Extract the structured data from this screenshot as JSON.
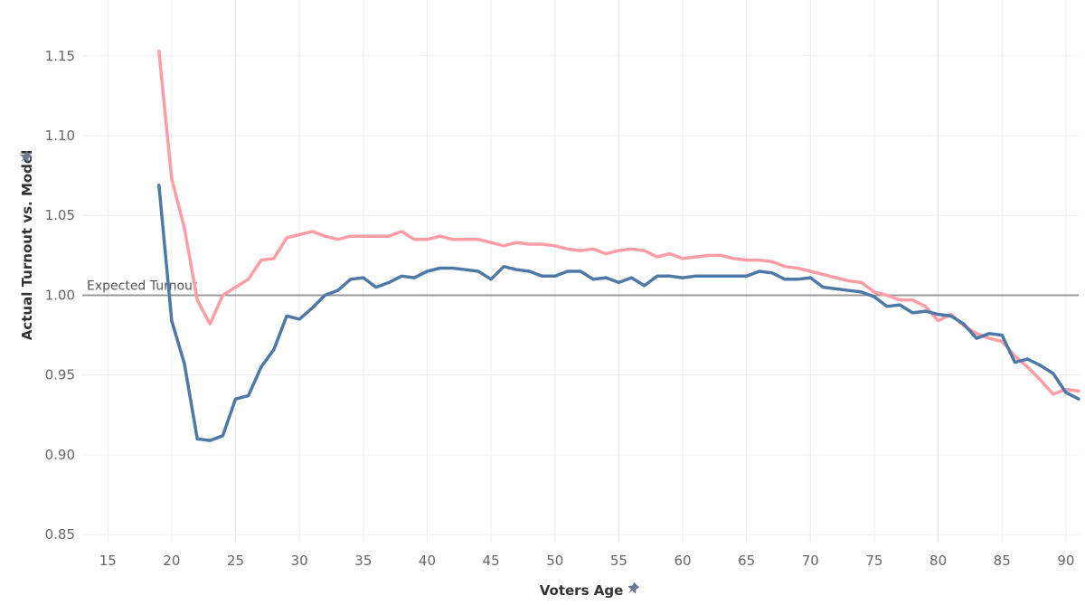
{
  "chart_data": {
    "type": "line",
    "xlabel": "Voters Age",
    "ylabel": "Actual Turnout vs. Model",
    "xlim": [
      13,
      91
    ],
    "ylim": [
      0.845,
      1.185
    ],
    "x_ticks": [
      15,
      20,
      25,
      30,
      35,
      40,
      45,
      50,
      55,
      60,
      65,
      70,
      75,
      80,
      85,
      90
    ],
    "y_ticks": [
      0.85,
      0.9,
      0.95,
      1.0,
      1.05,
      1.1,
      1.15
    ],
    "grid": true,
    "reference_line": {
      "value": 1.0,
      "label": "Expected Turnout",
      "color": "#999999"
    },
    "pin_icons": [
      "pin-icon",
      "pin-icon"
    ],
    "series": [
      {
        "color": "#ff9da7",
        "x": [
          19,
          20,
          21,
          22,
          23,
          24,
          25,
          26,
          27,
          28,
          29,
          30,
          31,
          32,
          33,
          34,
          35,
          36,
          37,
          38,
          39,
          40,
          41,
          42,
          43,
          44,
          45,
          46,
          47,
          48,
          49,
          50,
          51,
          52,
          53,
          54,
          55,
          56,
          57,
          58,
          59,
          60,
          61,
          62,
          63,
          64,
          65,
          66,
          67,
          68,
          69,
          70,
          71,
          72,
          73,
          74,
          75,
          76,
          77,
          78,
          79,
          80,
          81,
          82,
          83,
          84,
          85,
          86,
          87,
          88,
          89,
          90,
          91
        ],
        "values": [
          1.153,
          1.073,
          1.042,
          0.997,
          0.982,
          1.0,
          1.005,
          1.01,
          1.022,
          1.023,
          1.036,
          1.038,
          1.04,
          1.037,
          1.035,
          1.037,
          1.037,
          1.037,
          1.037,
          1.04,
          1.035,
          1.035,
          1.037,
          1.035,
          1.035,
          1.035,
          1.033,
          1.031,
          1.033,
          1.032,
          1.032,
          1.031,
          1.029,
          1.028,
          1.029,
          1.026,
          1.028,
          1.029,
          1.028,
          1.024,
          1.026,
          1.023,
          1.024,
          1.025,
          1.025,
          1.023,
          1.022,
          1.022,
          1.021,
          1.018,
          1.017,
          1.015,
          1.013,
          1.011,
          1.009,
          1.008,
          1.002,
          1.0,
          0.997,
          0.997,
          0.993,
          0.984,
          0.988,
          0.981,
          0.976,
          0.973,
          0.971,
          0.962,
          0.955,
          0.947,
          0.938,
          0.941,
          0.94
        ]
      },
      {
        "color": "#4e79a7",
        "x": [
          19,
          20,
          21,
          22,
          23,
          24,
          25,
          26,
          27,
          28,
          29,
          30,
          31,
          32,
          33,
          34,
          35,
          36,
          37,
          38,
          39,
          40,
          41,
          42,
          43,
          44,
          45,
          46,
          47,
          48,
          49,
          50,
          51,
          52,
          53,
          54,
          55,
          56,
          57,
          58,
          59,
          60,
          61,
          62,
          63,
          64,
          65,
          66,
          67,
          68,
          69,
          70,
          71,
          72,
          73,
          74,
          75,
          76,
          77,
          78,
          79,
          80,
          81,
          82,
          83,
          84,
          85,
          86,
          87,
          88,
          89,
          90,
          91
        ],
        "values": [
          1.069,
          0.984,
          0.957,
          0.91,
          0.909,
          0.912,
          0.935,
          0.937,
          0.955,
          0.966,
          0.987,
          0.985,
          0.992,
          1.0,
          1.003,
          1.01,
          1.011,
          1.005,
          1.008,
          1.012,
          1.011,
          1.015,
          1.017,
          1.017,
          1.016,
          1.015,
          1.01,
          1.018,
          1.016,
          1.015,
          1.012,
          1.012,
          1.015,
          1.015,
          1.01,
          1.011,
          1.008,
          1.011,
          1.006,
          1.012,
          1.012,
          1.011,
          1.012,
          1.012,
          1.012,
          1.012,
          1.012,
          1.015,
          1.014,
          1.01,
          1.01,
          1.011,
          1.005,
          1.004,
          1.003,
          1.002,
          0.999,
          0.993,
          0.994,
          0.989,
          0.99,
          0.988,
          0.987,
          0.982,
          0.973,
          0.976,
          0.975,
          0.958,
          0.96,
          0.956,
          0.951,
          0.939,
          0.935
        ]
      }
    ]
  }
}
